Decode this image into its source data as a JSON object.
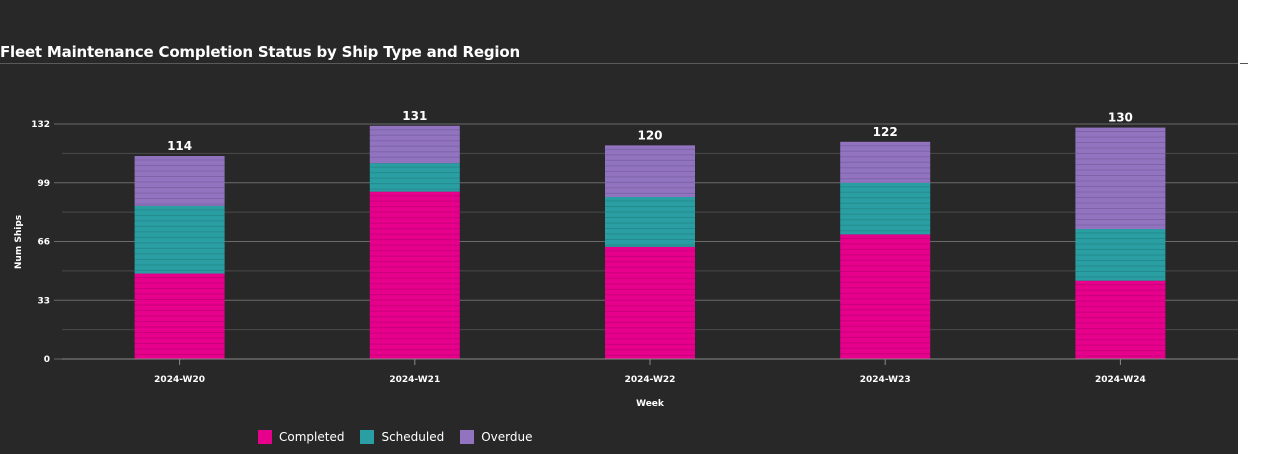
{
  "title": "Fleet Maintenance Completion Status by Ship Type and Region",
  "chart_data": {
    "type": "bar",
    "stacked": true,
    "categories": [
      "2024-W20",
      "2024-W21",
      "2024-W22",
      "2024-W23",
      "2024-W24"
    ],
    "series": [
      {
        "name": "Completed",
        "color": "#e6008c",
        "values": [
          48,
          94,
          63,
          70,
          44
        ]
      },
      {
        "name": "Scheduled",
        "color": "#2a9fa3",
        "values": [
          38,
          16,
          28,
          29,
          29
        ]
      },
      {
        "name": "Overdue",
        "color": "#9173c0",
        "values": [
          28,
          21,
          29,
          23,
          57
        ]
      }
    ],
    "totals": [
      "114",
      "131",
      "120",
      "122",
      "130"
    ],
    "xlabel": "Week",
    "ylabel": "Num Ships",
    "ylim": [
      0,
      132
    ],
    "yticks": [
      "0",
      "33",
      "66",
      "99",
      "132"
    ],
    "grid": true,
    "legend_position": "bottom-left"
  }
}
